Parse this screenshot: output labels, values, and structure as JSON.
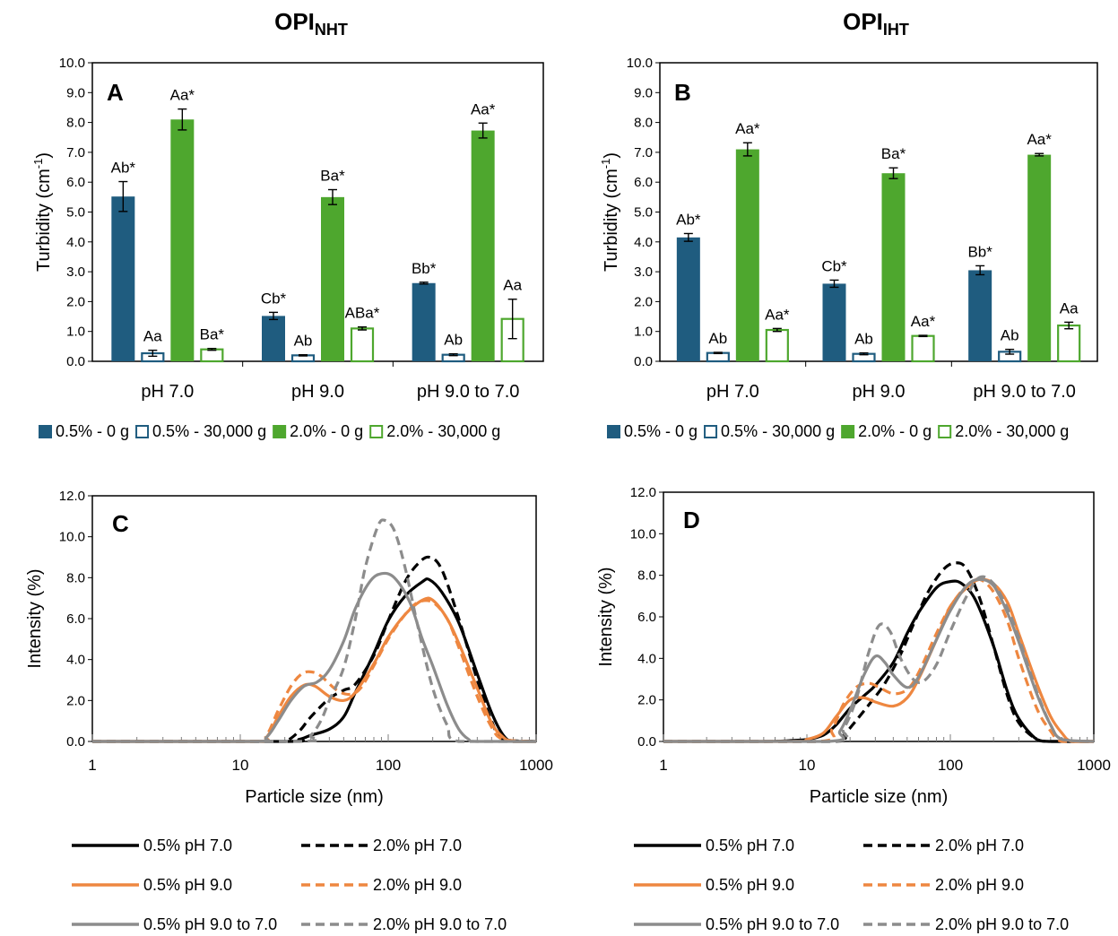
{
  "colors": {
    "dark_blue": "#1f5c7f",
    "green": "#4ea72e",
    "black": "#000000",
    "orange": "#ee8740",
    "gray": "#8c8c8c",
    "axis": "#000000",
    "tick_gray": "#7f7f7f"
  },
  "headers": {
    "left": {
      "main": "OPI",
      "sub": "NHT"
    },
    "right": {
      "main": "OPI",
      "sub": "IHT"
    }
  },
  "chart_data": [
    {
      "type": "bar",
      "panel_label": "A",
      "ylabel_main": "Turbidity (cm",
      "ylabel_sup": "-1",
      "ylabel_end": ")",
      "ylim": [
        0,
        10
      ],
      "yticks": [
        "0.0",
        "1.0",
        "2.0",
        "3.0",
        "4.0",
        "5.0",
        "6.0",
        "7.0",
        "8.0",
        "9.0",
        "10.0"
      ],
      "categories": [
        "pH 7.0",
        "pH 9.0",
        "pH 9.0 to 7.0"
      ],
      "series": [
        {
          "name": "0.5% - 0 g",
          "style": "filled",
          "color": "dark_blue",
          "values": [
            5.52,
            1.52,
            2.62
          ],
          "errors": [
            0.5,
            0.12,
            0.03
          ],
          "labels": [
            "Ab*",
            "Cb*",
            "Bb*"
          ]
        },
        {
          "name": "0.5% - 30,000 g",
          "style": "outline",
          "color": "dark_blue",
          "values": [
            0.27,
            0.2,
            0.22
          ],
          "errors": [
            0.1,
            0.02,
            0.03
          ],
          "labels": [
            "Aa",
            "Ab",
            "Ab"
          ]
        },
        {
          "name": "2.0% - 0 g",
          "style": "filled",
          "color": "green",
          "values": [
            8.1,
            5.5,
            7.73
          ],
          "errors": [
            0.35,
            0.25,
            0.25
          ],
          "labels": [
            "Aa*",
            "Ba*",
            "Aa*"
          ]
        },
        {
          "name": "2.0% - 30,000 g",
          "style": "outline",
          "color": "green",
          "values": [
            0.4,
            1.1,
            1.42
          ],
          "errors": [
            0.03,
            0.05,
            0.66
          ],
          "labels": [
            "Ba*",
            "ABa*",
            "Aa"
          ]
        }
      ],
      "legend_position": "bottom"
    },
    {
      "type": "bar",
      "panel_label": "B",
      "ylabel_main": "Turbidity (cm",
      "ylabel_sup": "-1",
      "ylabel_end": ")",
      "ylim": [
        0,
        10
      ],
      "yticks": [
        "0.0",
        "1.0",
        "2.0",
        "3.0",
        "4.0",
        "5.0",
        "6.0",
        "7.0",
        "8.0",
        "9.0",
        "10.0"
      ],
      "categories": [
        "pH 7.0",
        "pH 9.0",
        "pH 9.0 to 7.0"
      ],
      "series": [
        {
          "name": "0.5% - 0 g",
          "style": "filled",
          "color": "dark_blue",
          "values": [
            4.15,
            2.6,
            3.05
          ],
          "errors": [
            0.13,
            0.12,
            0.15
          ],
          "labels": [
            "Ab*",
            "Cb*",
            "Bb*"
          ]
        },
        {
          "name": "0.5% - 30,000 g",
          "style": "outline",
          "color": "dark_blue",
          "values": [
            0.28,
            0.25,
            0.32
          ],
          "errors": [
            0.02,
            0.03,
            0.08
          ],
          "labels": [
            "Ab",
            "Ab",
            "Ab"
          ]
        },
        {
          "name": "2.0% - 0 g",
          "style": "filled",
          "color": "green",
          "values": [
            7.1,
            6.3,
            6.92
          ],
          "errors": [
            0.22,
            0.18,
            0.04
          ],
          "labels": [
            "Aa*",
            "Ba*",
            "Aa*"
          ]
        },
        {
          "name": "2.0% - 30,000 g",
          "style": "outline",
          "color": "green",
          "values": [
            1.05,
            0.85,
            1.2
          ],
          "errors": [
            0.05,
            0.02,
            0.11
          ],
          "labels": [
            "Aa*",
            "Aa*",
            "Aa"
          ]
        }
      ],
      "legend_position": "bottom"
    },
    {
      "type": "line",
      "panel_label": "C",
      "xscale": "log",
      "xlim": [
        1,
        1000
      ],
      "xticks": [
        "1",
        "10",
        "100",
        "1000"
      ],
      "ylim": [
        0,
        12
      ],
      "yticks": [
        "0.0",
        "2.0",
        "4.0",
        "6.0",
        "8.0",
        "10.0",
        "12.0"
      ],
      "xlabel": "Particle size (nm)",
      "ylabel": "Intensity (%)",
      "series": [
        {
          "name": "0.5% pH 7.0",
          "color": "black",
          "dash": "solid",
          "x": [
            1,
            20,
            25,
            30,
            40,
            50,
            60,
            80,
            100,
            130,
            170,
            190,
            230,
            300,
            400,
            500,
            600,
            700,
            1000
          ],
          "y": [
            0,
            0,
            0.1,
            0.3,
            0.6,
            1.2,
            2.4,
            4.3,
            5.9,
            7.1,
            7.8,
            7.9,
            7.3,
            5.8,
            3.3,
            1.4,
            0.3,
            0,
            0
          ]
        },
        {
          "name": "2.0% pH 7.0",
          "color": "black",
          "dash": "dashed",
          "x": [
            1,
            15,
            20,
            25,
            30,
            40,
            50,
            60,
            80,
            100,
            130,
            160,
            190,
            230,
            300,
            400,
            500,
            600,
            1000
          ],
          "y": [
            0,
            0,
            0,
            0.5,
            1.2,
            2.1,
            2.5,
            2.8,
            4.2,
            5.9,
            7.8,
            8.7,
            9.0,
            8.4,
            6.0,
            3.0,
            1.0,
            0.1,
            0
          ]
        },
        {
          "name": "0.5% pH 9.0",
          "color": "orange",
          "dash": "solid",
          "x": [
            1,
            12,
            15,
            18,
            22,
            27,
            32,
            40,
            50,
            60,
            80,
            100,
            130,
            170,
            200,
            250,
            300,
            400,
            500,
            600,
            700,
            1000
          ],
          "y": [
            0,
            0,
            0.2,
            1.2,
            2.2,
            2.75,
            2.7,
            2.2,
            2.0,
            2.4,
            3.8,
            5.1,
            6.2,
            6.9,
            6.9,
            6.0,
            4.8,
            2.6,
            0.9,
            0.2,
            0,
            0
          ]
        },
        {
          "name": "2.0% pH 9.0",
          "color": "orange",
          "dash": "dashed",
          "x": [
            1,
            12,
            15,
            18,
            22,
            26,
            30,
            35,
            45,
            55,
            65,
            80,
            100,
            130,
            160,
            200,
            250,
            300,
            400,
            500,
            600,
            1000
          ],
          "y": [
            0,
            0,
            0.3,
            1.5,
            2.7,
            3.3,
            3.4,
            3.2,
            2.5,
            2.3,
            2.6,
            3.7,
            5.0,
            6.2,
            6.8,
            6.8,
            6.0,
            4.6,
            2.2,
            0.7,
            0.1,
            0
          ]
        },
        {
          "name": "0.5% pH 9.0 to 7.0",
          "color": "gray",
          "dash": "solid",
          "x": [
            1,
            12,
            15,
            18,
            22,
            27,
            33,
            40,
            50,
            60,
            75,
            90,
            110,
            140,
            170,
            200,
            250,
            300,
            350,
            400,
            1000
          ],
          "y": [
            0,
            0,
            0.2,
            1.0,
            2.0,
            2.7,
            2.9,
            3.5,
            4.9,
            6.5,
            7.8,
            8.2,
            8.0,
            6.8,
            5.0,
            3.7,
            1.8,
            0.6,
            0.1,
            0,
            0
          ]
        },
        {
          "name": "2.0% pH 9.0 to 7.0",
          "color": "gray",
          "dash": "dashed",
          "x": [
            1,
            25,
            30,
            35,
            40,
            50,
            60,
            70,
            85,
            95,
            110,
            130,
            160,
            200,
            250,
            300,
            1000
          ],
          "y": [
            0,
            0,
            0.3,
            1.0,
            2.0,
            3.6,
            6.0,
            8.5,
            10.5,
            10.8,
            10.3,
            8.5,
            5.5,
            2.6,
            0.8,
            0,
            0
          ]
        }
      ],
      "legend_position": "bottom"
    },
    {
      "type": "line",
      "panel_label": "D",
      "xscale": "log",
      "xlim": [
        1,
        1000
      ],
      "xticks": [
        "1",
        "10",
        "100",
        "1000"
      ],
      "ylim": [
        0,
        12
      ],
      "yticks": [
        "0.0",
        "2.0",
        "4.0",
        "6.0",
        "8.0",
        "10.0",
        "12.0"
      ],
      "xlabel": "Particle size (nm)",
      "ylabel": "Intensity (%)",
      "series": [
        {
          "name": "0.5% pH 7.0",
          "color": "black",
          "dash": "solid",
          "x": [
            1,
            5,
            8,
            10,
            13,
            16,
            20,
            25,
            30,
            40,
            50,
            60,
            80,
            100,
            120,
            150,
            200,
            250,
            300,
            400,
            500,
            1000
          ],
          "y": [
            0,
            0,
            0.05,
            0.1,
            0.3,
            0.8,
            1.6,
            2.2,
            2.7,
            3.8,
            5.2,
            6.2,
            7.4,
            7.7,
            7.6,
            6.8,
            4.6,
            2.4,
            1.1,
            0.1,
            0,
            0
          ]
        },
        {
          "name": "2.0% pH 7.0",
          "color": "black",
          "dash": "dashed",
          "x": [
            1,
            15,
            18,
            22,
            28,
            35,
            45,
            55,
            70,
            90,
            110,
            130,
            160,
            200,
            250,
            300,
            400,
            500,
            1000
          ],
          "y": [
            0,
            0,
            0.3,
            1.0,
            1.9,
            2.8,
            4.2,
            5.6,
            7.2,
            8.3,
            8.6,
            8.3,
            6.9,
            4.6,
            2.2,
            0.9,
            0.1,
            0,
            0
          ]
        },
        {
          "name": "0.5% pH 9.0",
          "color": "orange",
          "dash": "solid",
          "x": [
            1,
            8,
            10,
            13,
            16,
            20,
            25,
            30,
            40,
            50,
            60,
            80,
            100,
            130,
            160,
            200,
            250,
            300,
            400,
            500,
            600,
            700,
            1000
          ],
          "y": [
            0,
            0,
            0.1,
            0.4,
            1.2,
            2.0,
            2.1,
            1.9,
            1.7,
            2.1,
            3.0,
            4.9,
            6.5,
            7.4,
            7.8,
            7.6,
            6.7,
            5.2,
            2.8,
            1.2,
            0.4,
            0,
            0
          ]
        },
        {
          "name": "2.0% pH 9.0",
          "color": "orange",
          "dash": "dashed",
          "x": [
            1,
            12,
            15,
            18,
            22,
            27,
            32,
            40,
            50,
            60,
            80,
            100,
            130,
            160,
            200,
            250,
            300,
            400,
            500,
            600,
            1000
          ],
          "y": [
            0,
            0,
            0.6,
            1.8,
            2.6,
            2.8,
            2.6,
            2.3,
            2.5,
            3.3,
            5.2,
            6.5,
            7.5,
            7.8,
            7.2,
            5.8,
            4.0,
            1.6,
            0.5,
            0,
            0
          ]
        },
        {
          "name": "0.5% pH 9.0 to 7.0",
          "color": "gray",
          "dash": "solid",
          "x": [
            1,
            14,
            17,
            20,
            25,
            30,
            35,
            40,
            50,
            60,
            80,
            100,
            130,
            160,
            200,
            250,
            300,
            400,
            500,
            600,
            1000
          ],
          "y": [
            0,
            0,
            0.5,
            1.5,
            3.2,
            4.1,
            3.8,
            3.2,
            2.6,
            3.1,
            4.9,
            6.3,
            7.5,
            7.8,
            7.5,
            6.2,
            4.8,
            2.3,
            0.8,
            0.1,
            0
          ]
        },
        {
          "name": "2.0% pH 9.0 to 7.0",
          "color": "gray",
          "dash": "dashed",
          "x": [
            1,
            15,
            18,
            22,
            27,
            32,
            38,
            45,
            55,
            65,
            80,
            100,
            130,
            160,
            200,
            250,
            300,
            400,
            500,
            600,
            1000
          ],
          "y": [
            0,
            0,
            0.6,
            2.0,
            4.3,
            5.6,
            5.3,
            4.0,
            3.0,
            2.9,
            3.7,
            5.3,
            7.0,
            7.9,
            7.6,
            6.4,
            5.0,
            2.4,
            0.8,
            0.1,
            0
          ]
        }
      ],
      "legend_position": "bottom"
    }
  ]
}
